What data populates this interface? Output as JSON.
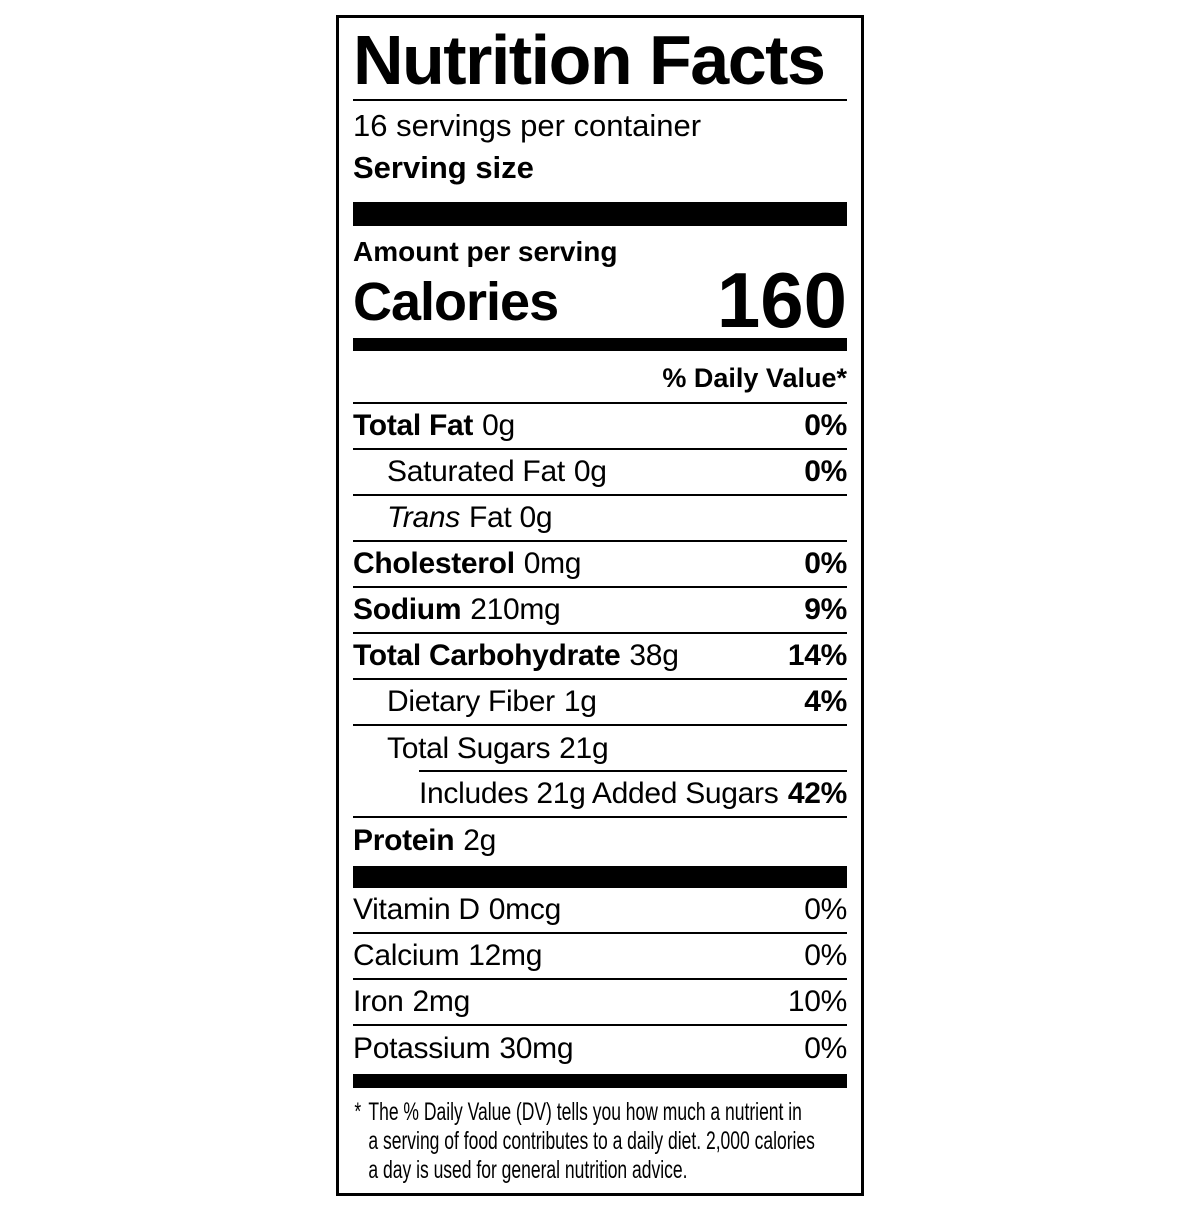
{
  "label": {
    "title": "Nutrition Facts",
    "servings_per_container": "16 servings per container",
    "serving_size_label": "Serving size",
    "serving_size_value": "",
    "amount_per_serving": "Amount per serving",
    "calories_label": "Calories",
    "calories_value": "160",
    "daily_value_header": "% Daily Value*",
    "nutrients": [
      {
        "name": "Total Fat",
        "amount": "0g",
        "dv": "0%"
      },
      {
        "name": "Saturated Fat",
        "amount": "0g",
        "dv": "0%"
      },
      {
        "name": "Trans",
        "amount": "Fat 0g",
        "dv": ""
      },
      {
        "name": "Cholesterol",
        "amount": "0mg",
        "dv": "0%"
      },
      {
        "name": "Sodium",
        "amount": "210mg",
        "dv": "9%"
      },
      {
        "name": "Total Carbohydrate",
        "amount": "38g",
        "dv": "14%"
      },
      {
        "name": "Dietary Fiber",
        "amount": "1g",
        "dv": "4%"
      },
      {
        "name": "Total Sugars",
        "amount": "21g",
        "dv": ""
      },
      {
        "name": "Includes 21g Added Sugars",
        "amount": "",
        "dv": "42%"
      },
      {
        "name": "Protein",
        "amount": "2g",
        "dv": ""
      }
    ],
    "vitamins": [
      {
        "name": "Vitamin D",
        "amount": "0mcg",
        "dv": "0%"
      },
      {
        "name": "Calcium",
        "amount": "12mg",
        "dv": "0%"
      },
      {
        "name": "Iron",
        "amount": "2mg",
        "dv": "10%"
      },
      {
        "name": "Potassium",
        "amount": "30mg",
        "dv": "0%"
      }
    ],
    "footnote_asterisk": "*",
    "footnote_lines": [
      "The % Daily Value (DV) tells you how much a nutrient in",
      "a serving of food contributes to a daily diet. 2,000 calories",
      "a day is used for general nutrition advice."
    ]
  }
}
